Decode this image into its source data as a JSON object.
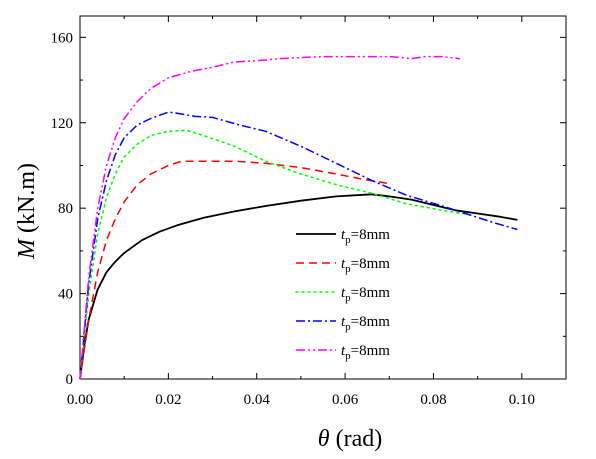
{
  "chart_data": {
    "type": "line",
    "xlabel": {
      "symbol": "θ",
      "unit": " (rad)"
    },
    "ylabel": {
      "symbol": "M",
      "unit": " (kN.m)"
    },
    "xlim": [
      0.0,
      0.11
    ],
    "ylim": [
      0,
      170
    ],
    "xticks": [
      0.0,
      0.02,
      0.04,
      0.06,
      0.08,
      0.1
    ],
    "xtick_labels": [
      "0.00",
      "0.02",
      "0.04",
      "0.06",
      "0.08",
      "0.10"
    ],
    "yticks": [
      0,
      40,
      80,
      120,
      160
    ],
    "ytick_labels": [
      "0",
      "40",
      "80",
      "120",
      "160"
    ],
    "grid": false,
    "legend_position": "right-middle",
    "series": [
      {
        "label_symbol": "t",
        "label_subscript": "p",
        "label_value": "=8mm",
        "color": "#000000",
        "dash": "solid",
        "points": [
          [
            0,
            0
          ],
          [
            0.001,
            16
          ],
          [
            0.002,
            28
          ],
          [
            0.004,
            42
          ],
          [
            0.006,
            50
          ],
          [
            0.008,
            55
          ],
          [
            0.01,
            59
          ],
          [
            0.014,
            65
          ],
          [
            0.018,
            69
          ],
          [
            0.022,
            72
          ],
          [
            0.028,
            75.5
          ],
          [
            0.035,
            78.5
          ],
          [
            0.042,
            81
          ],
          [
            0.05,
            83.5
          ],
          [
            0.058,
            85.5
          ],
          [
            0.066,
            86.5
          ],
          [
            0.07,
            85.5
          ],
          [
            0.075,
            84
          ],
          [
            0.08,
            81.5
          ],
          [
            0.085,
            79
          ],
          [
            0.09,
            77.5
          ],
          [
            0.095,
            76
          ],
          [
            0.099,
            74.5
          ]
        ]
      },
      {
        "label_symbol": "t",
        "label_subscript": "p",
        "label_value": "=8mm",
        "color": "#ff0000",
        "dash": "dashed",
        "points": [
          [
            0,
            0
          ],
          [
            0.002,
            28
          ],
          [
            0.004,
            50
          ],
          [
            0.006,
            65
          ],
          [
            0.008,
            75
          ],
          [
            0.01,
            83
          ],
          [
            0.013,
            91
          ],
          [
            0.016,
            96
          ],
          [
            0.02,
            100
          ],
          [
            0.023,
            102
          ],
          [
            0.028,
            102
          ],
          [
            0.035,
            102
          ],
          [
            0.042,
            101
          ],
          [
            0.05,
            99
          ],
          [
            0.058,
            96
          ],
          [
            0.064,
            93.5
          ],
          [
            0.07,
            91.5
          ]
        ]
      },
      {
        "label_symbol": "t",
        "label_subscript": "p",
        "label_value": "=8mm",
        "color": "#00ff00",
        "dash": "dotted",
        "points": [
          [
            0,
            0
          ],
          [
            0.002,
            40
          ],
          [
            0.004,
            68
          ],
          [
            0.006,
            85
          ],
          [
            0.008,
            96
          ],
          [
            0.01,
            104
          ],
          [
            0.013,
            110
          ],
          [
            0.016,
            114
          ],
          [
            0.02,
            116
          ],
          [
            0.024,
            116.5
          ],
          [
            0.028,
            114
          ],
          [
            0.035,
            109
          ],
          [
            0.042,
            102
          ],
          [
            0.05,
            96
          ],
          [
            0.058,
            91
          ],
          [
            0.066,
            87
          ],
          [
            0.074,
            82
          ],
          [
            0.082,
            79
          ],
          [
            0.088,
            77
          ]
        ]
      },
      {
        "label_symbol": "t",
        "label_subscript": "p",
        "label_value": "=8mm",
        "color": "#0000ff",
        "dash": "dashdot",
        "points": [
          [
            0,
            0
          ],
          [
            0.002,
            45
          ],
          [
            0.004,
            75
          ],
          [
            0.006,
            93
          ],
          [
            0.008,
            105
          ],
          [
            0.01,
            113
          ],
          [
            0.013,
            119
          ],
          [
            0.016,
            122
          ],
          [
            0.02,
            125
          ],
          [
            0.022,
            124.5
          ],
          [
            0.026,
            123
          ],
          [
            0.03,
            122.5
          ],
          [
            0.036,
            119
          ],
          [
            0.042,
            116
          ],
          [
            0.05,
            109
          ],
          [
            0.058,
            101
          ],
          [
            0.066,
            93
          ],
          [
            0.074,
            86
          ],
          [
            0.082,
            81
          ],
          [
            0.088,
            77
          ],
          [
            0.094,
            73
          ],
          [
            0.099,
            70
          ]
        ]
      },
      {
        "label_symbol": "t",
        "label_subscript": "p",
        "label_value": "=8mm",
        "color": "#ff00ff",
        "dash": "dashdotdot",
        "points": [
          [
            0,
            0
          ],
          [
            0.002,
            48
          ],
          [
            0.004,
            80
          ],
          [
            0.006,
            100
          ],
          [
            0.008,
            113
          ],
          [
            0.01,
            122
          ],
          [
            0.013,
            130
          ],
          [
            0.016,
            136
          ],
          [
            0.02,
            141
          ],
          [
            0.025,
            144
          ],
          [
            0.03,
            146
          ],
          [
            0.035,
            148.5
          ],
          [
            0.04,
            149
          ],
          [
            0.045,
            150
          ],
          [
            0.05,
            150.5
          ],
          [
            0.055,
            151
          ],
          [
            0.06,
            151
          ],
          [
            0.065,
            151
          ],
          [
            0.07,
            151
          ],
          [
            0.073,
            150.5
          ],
          [
            0.075,
            150
          ],
          [
            0.078,
            151
          ],
          [
            0.082,
            151
          ],
          [
            0.086,
            150
          ]
        ]
      }
    ]
  }
}
